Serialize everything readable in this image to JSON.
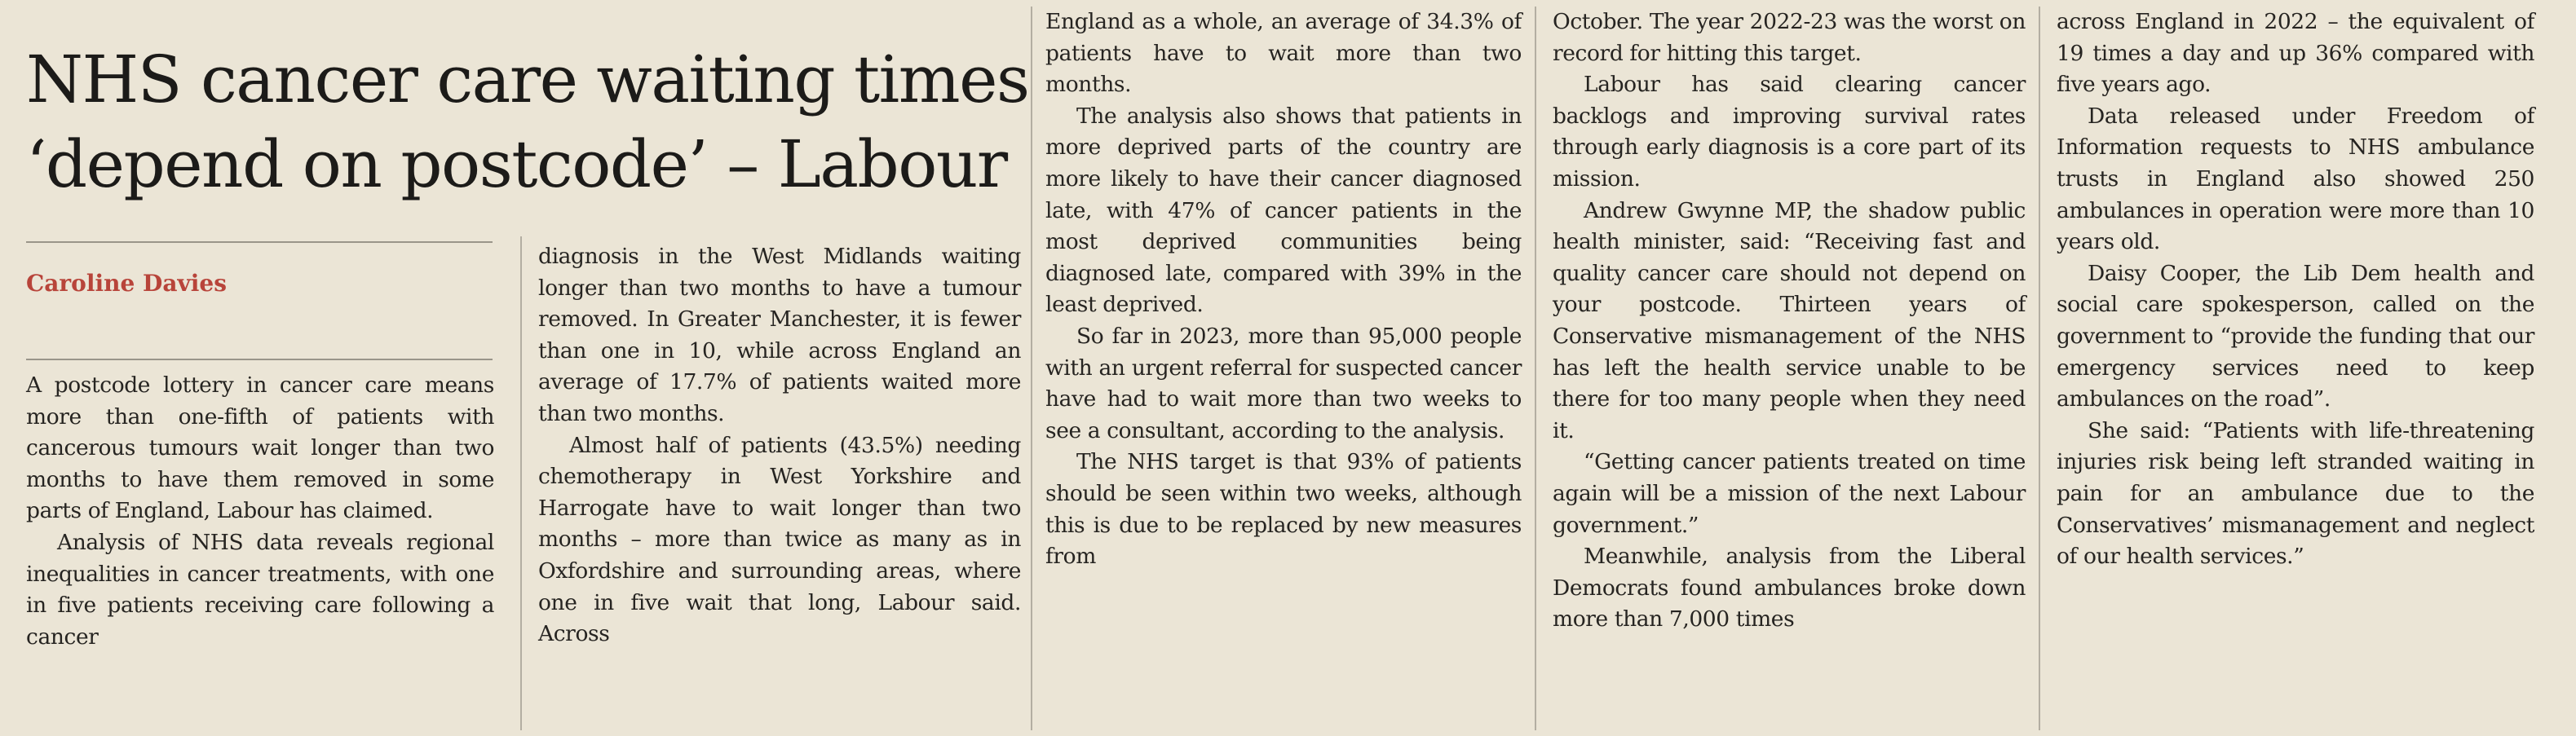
{
  "article": {
    "headline_line1": "NHS cancer care waiting times",
    "headline_line2": "‘depend on postcode’ – Labour",
    "byline": "Caroline Davies"
  },
  "columns": [
    {
      "paragraphs": [
        "A postcode lottery in cancer care means more than one-fifth of patients with cancerous tumours wait longer than two months to have them removed in some parts of England, Labour has claimed.",
        "Analysis of NHS data reveals regional inequalities in cancer treatments, with one in five patients receiving care following a cancer"
      ]
    },
    {
      "paragraphs": [
        "diagnosis in the West Midlands waiting longer than two months to have a tumour removed. In Greater Manchester, it is fewer than one in 10, while across England an average of 17.7% of patients waited more than two months.",
        "Almost half of patients (43.5%) needing chemotherapy in West Yorkshire and Harrogate have to wait longer than two months – more than twice as many as in Oxfordshire and surrounding areas, where one in five wait that long, Labour said. Across"
      ]
    },
    {
      "paragraphs": [
        "England as a whole, an average of 34.3% of patients have to wait more than two months.",
        "The analysis also shows that patients in more deprived parts of the country are more likely to have their cancer diagnosed late, with 47% of cancer patients in the most deprived communities being diagnosed late, compared with 39% in the least deprived.",
        "So far in 2023, more than 95,000 people with an urgent referral for suspected cancer have had to wait more than two weeks to see a consultant, according to the analysis.",
        "The NHS target is that 93% of patients should be seen within two weeks, although this is due to be replaced by new measures from"
      ]
    },
    {
      "paragraphs": [
        "October. The year 2022-23 was the worst on record for hitting this target.",
        "Labour has said clearing cancer backlogs and improving survival rates through early diagnosis is a core part of its mission.",
        "Andrew Gwynne MP, the shadow public health minister, said: “Receiving fast and quality cancer care should not depend on your postcode. Thirteen years of Conservative mismanagement of the NHS has left the health service unable to be there for too many people when they need it.",
        "“Getting cancer patients treated on time again will be a mission of the next Labour government.”",
        "Meanwhile, analysis from the Liberal Democrats found ambulances broke down more than 7,000 times"
      ]
    },
    {
      "paragraphs": [
        "across England in 2022 – the equivalent of 19 times a day and up 36% compared with five years ago.",
        "Data released under Freedom of Information requests to NHS ambulance trusts in England also showed 250 ambulances in operation were more than 10 years old.",
        "Daisy Cooper, the Lib Dem health and social care spokesperson, called on the government to “provide the funding that our emergency services need to keep ambulances on the road”.",
        "She said: “Patients with life-threatening injuries risk being left stranded waiting in pain for an ambulance due to the Conservatives’ mismanagement and neglect of our health services.”"
      ]
    }
  ]
}
